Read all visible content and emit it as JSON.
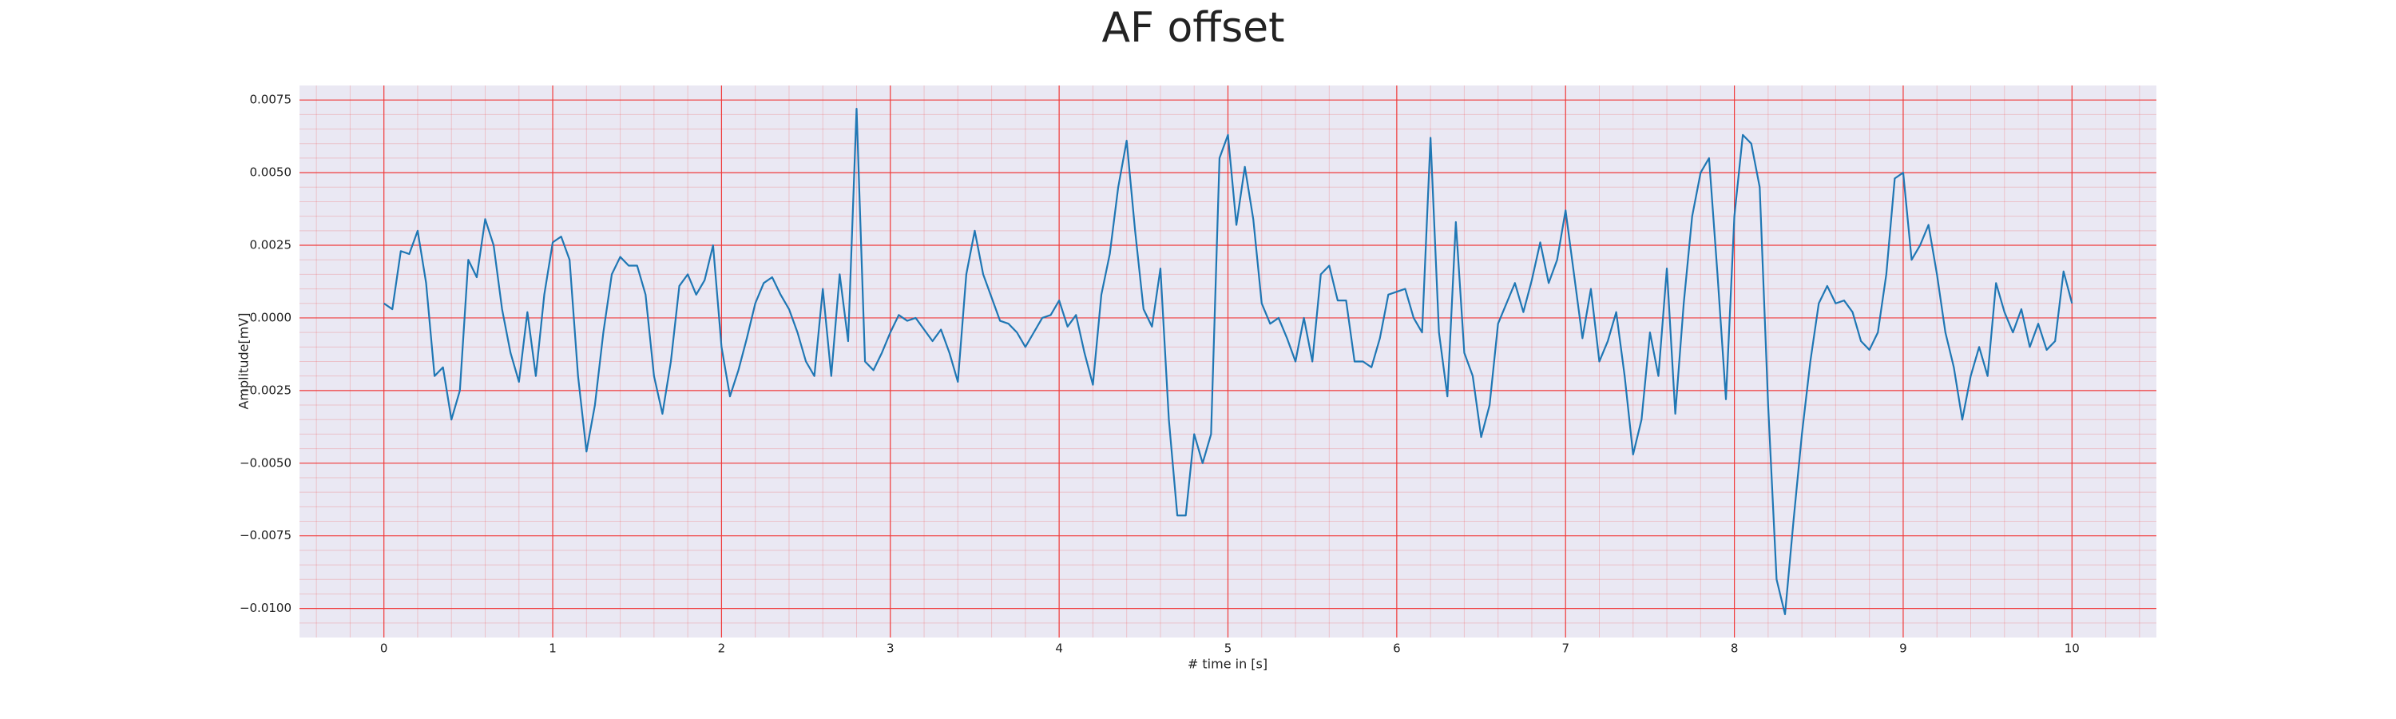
{
  "chart_data": {
    "type": "line",
    "title": "AF offset",
    "xlabel": "# time in [s]",
    "ylabel": "Amplitude[mV]",
    "x": [
      0,
      0.05,
      0.1,
      0.15,
      0.2,
      0.25,
      0.3,
      0.35,
      0.4,
      0.45,
      0.5,
      0.55,
      0.6,
      0.65,
      0.7,
      0.75,
      0.8,
      0.85,
      0.9,
      0.95,
      1,
      1.05,
      1.1,
      1.15,
      1.2,
      1.25,
      1.3,
      1.35,
      1.4,
      1.45,
      1.5,
      1.55,
      1.6,
      1.65,
      1.7,
      1.75,
      1.8,
      1.85,
      1.9,
      1.95,
      2,
      2.05,
      2.1,
      2.15,
      2.2,
      2.25,
      2.3,
      2.35,
      2.4,
      2.45,
      2.5,
      2.55,
      2.6,
      2.65,
      2.7,
      2.75,
      2.8,
      2.85,
      2.9,
      2.95,
      3,
      3.05,
      3.1,
      3.15,
      3.2,
      3.25,
      3.3,
      3.35,
      3.4,
      3.45,
      3.5,
      3.55,
      3.6,
      3.65,
      3.7,
      3.75,
      3.8,
      3.85,
      3.9,
      3.95,
      4,
      4.05,
      4.1,
      4.15,
      4.2,
      4.25,
      4.3,
      4.35,
      4.4,
      4.45,
      4.5,
      4.55,
      4.6,
      4.65,
      4.7,
      4.75,
      4.8,
      4.85,
      4.9,
      4.95,
      5,
      5.05,
      5.1,
      5.15,
      5.2,
      5.25,
      5.3,
      5.35,
      5.4,
      5.45,
      5.5,
      5.55,
      5.6,
      5.65,
      5.7,
      5.75,
      5.8,
      5.85,
      5.9,
      5.95,
      6,
      6.05,
      6.1,
      6.15,
      6.2,
      6.25,
      6.3,
      6.35,
      6.4,
      6.45,
      6.5,
      6.55,
      6.6,
      6.65,
      6.7,
      6.75,
      6.8,
      6.85,
      6.9,
      6.95,
      7,
      7.05,
      7.1,
      7.15,
      7.2,
      7.25,
      7.3,
      7.35,
      7.4,
      7.45,
      7.5,
      7.55,
      7.6,
      7.65,
      7.7,
      7.75,
      7.8,
      7.85,
      7.9,
      7.95,
      8,
      8.05,
      8.1,
      8.15,
      8.2,
      8.25,
      8.3,
      8.35,
      8.4,
      8.45,
      8.5,
      8.55,
      8.6,
      8.65,
      8.7,
      8.75,
      8.8,
      8.85,
      8.9,
      8.95,
      9,
      9.05,
      9.1,
      9.15,
      9.2,
      9.25,
      9.3,
      9.35,
      9.4,
      9.45,
      9.5,
      9.55,
      9.6,
      9.65,
      9.7,
      9.75,
      9.8,
      9.85,
      9.9,
      9.95,
      10
    ],
    "series": [
      {
        "color": "#1f77b4",
        "values": [
          0.0005,
          0.0003,
          0.0023,
          0.0022,
          0.003,
          0.0012,
          -0.002,
          -0.0017,
          -0.0035,
          -0.0025,
          0.002,
          0.0014,
          0.0034,
          0.0025,
          0.0003,
          -0.0012,
          -0.0022,
          0.0002,
          -0.002,
          0.0008,
          0.0026,
          0.0028,
          0.002,
          -0.002,
          -0.0046,
          -0.003,
          -0.0005,
          0.0015,
          0.0021,
          0.0018,
          0.0018,
          0.0008,
          -0.002,
          -0.0033,
          -0.0015,
          0.0011,
          0.0015,
          0.0008,
          0.0013,
          0.0025,
          -0.001,
          -0.0027,
          -0.0018,
          -0.0007,
          0.0005,
          0.0012,
          0.0014,
          0.0008,
          0.0003,
          -0.0005,
          -0.0015,
          -0.002,
          0.001,
          -0.002,
          0.0015,
          -0.0008,
          0.0072,
          -0.0015,
          -0.0018,
          -0.0012,
          -0.0005,
          0.0001,
          -0.0001,
          0,
          -0.0004,
          -0.0008,
          -0.0004,
          -0.0012,
          -0.0022,
          0.0015,
          0.003,
          0.0015,
          0.0007,
          -0.0001,
          -0.0002,
          -0.0005,
          -0.001,
          -0.0005,
          0,
          0.0001,
          0.0006,
          -0.0003,
          0.0001,
          -0.0012,
          -0.0023,
          0.0008,
          0.0022,
          0.0045,
          0.0061,
          0.003,
          0.0003,
          -0.0003,
          0.0017,
          -0.0035,
          -0.0068,
          -0.0068,
          -0.004,
          -0.005,
          -0.004,
          0.0055,
          0.0063,
          0.0032,
          0.0052,
          0.0034,
          0.0005,
          -0.0002,
          0,
          -0.0007,
          -0.0015,
          0,
          -0.0015,
          0.0015,
          0.0018,
          0.0006,
          0.0006,
          -0.0015,
          -0.0015,
          -0.0017,
          -0.0007,
          0.0008,
          0.0009,
          0.001,
          0,
          -0.0005,
          0.0062,
          -0.0005,
          -0.0027,
          0.0033,
          -0.0012,
          -0.002,
          -0.0041,
          -0.003,
          -0.0002,
          0.0005,
          0.0012,
          0.0002,
          0.0013,
          0.0026,
          0.0012,
          0.002,
          0.0037,
          0.0015,
          -0.0007,
          0.001,
          -0.0015,
          -0.0008,
          0.0002,
          -0.002,
          -0.0047,
          -0.0035,
          -0.0005,
          -0.002,
          0.0017,
          -0.0033,
          0.0005,
          0.0035,
          0.005,
          0.0055,
          0.0015,
          -0.0028,
          0.0035,
          0.0063,
          0.006,
          0.0045,
          -0.003,
          -0.009,
          -0.0102,
          -0.007,
          -0.004,
          -0.0015,
          0.0005,
          0.0011,
          0.0005,
          0.0006,
          0.0002,
          -0.0008,
          -0.0011,
          -0.0005,
          0.0015,
          0.0048,
          0.005,
          0.002,
          0.0025,
          0.0032,
          0.0015,
          -0.0005,
          -0.0017,
          -0.0035,
          -0.002,
          -0.001,
          -0.002,
          0.0012,
          0.0002,
          -0.0005,
          0.0003,
          -0.001,
          -0.0002,
          -0.0011,
          -0.0008,
          0.0016,
          0.0005
        ]
      }
    ],
    "xlim": [
      -0.5,
      10.5
    ],
    "ylim": [
      -0.011,
      0.008
    ],
    "xticks": [
      0,
      1,
      2,
      3,
      4,
      5,
      6,
      7,
      8,
      9,
      10
    ],
    "yticks": [
      {
        "value": -0.01,
        "label": "−0.0100"
      },
      {
        "value": -0.0075,
        "label": "−0.0075"
      },
      {
        "value": -0.005,
        "label": "−0.0050"
      },
      {
        "value": -0.0025,
        "label": "−0.0025"
      },
      {
        "value": 0,
        "label": "0.0000"
      },
      {
        "value": 0.0025,
        "label": "0.0025"
      },
      {
        "value": 0.005,
        "label": "0.0050"
      },
      {
        "value": 0.0075,
        "label": "0.0075"
      }
    ],
    "grid": true,
    "grid_color": "#f03c3c",
    "background": "#eae8f3"
  }
}
